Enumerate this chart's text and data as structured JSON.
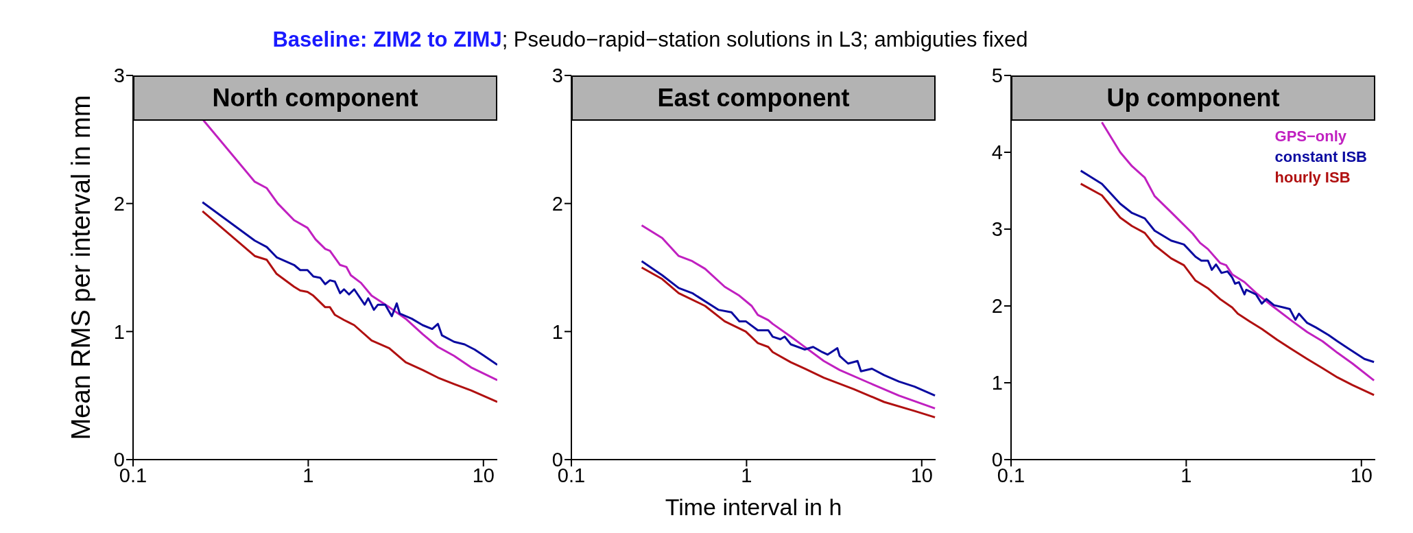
{
  "chart_data": [
    {
      "type": "line",
      "title": "North component",
      "subtitle": "Baseline: ZIM2 to ZIMJ; Pseudo−rapid−station solutions in L3; ambiguties fixed",
      "ylabel": "Mean RMS per interval in mm",
      "log": "x",
      "xlim": [
        0.1,
        12
      ],
      "xticks": [
        0.1,
        1,
        10
      ],
      "ylim": [
        0,
        3
      ],
      "yticks": [
        0,
        1,
        2,
        3
      ],
      "grid": false,
      "legend": false,
      "marker": "none",
      "line_style": "solid",
      "series": [
        {
          "color": "#c020c0",
          "x": [
            0.252,
            0.495,
            0.58,
            0.67,
            0.83,
            0.99,
            1.1,
            1.25,
            1.33,
            1.52,
            1.65,
            1.75,
            2.0,
            2.3,
            2.9,
            3.6,
            4.5,
            5.5,
            6.8,
            8.5,
            12
          ],
          "values": [
            2.65,
            2.17,
            2.12,
            2.0,
            1.87,
            1.81,
            1.72,
            1.645,
            1.63,
            1.52,
            1.505,
            1.44,
            1.38,
            1.28,
            1.19,
            1.1,
            0.98,
            0.88,
            0.81,
            0.72,
            0.62
          ]
        },
        {
          "color": "#0a0aa0",
          "x": [
            0.249,
            0.495,
            0.58,
            0.66,
            0.83,
            0.9,
            0.99,
            1.07,
            1.17,
            1.25,
            1.33,
            1.42,
            1.52,
            1.6,
            1.71,
            1.83,
            2.1,
            2.2,
            2.37,
            2.5,
            2.75,
            3.0,
            3.2,
            3.33,
            3.9,
            4.5,
            5.1,
            5.5,
            5.8,
            6.8,
            7.8,
            8.9,
            10.1,
            12
          ],
          "values": [
            2.01,
            1.71,
            1.66,
            1.58,
            1.52,
            1.48,
            1.48,
            1.43,
            1.42,
            1.37,
            1.4,
            1.39,
            1.3,
            1.33,
            1.29,
            1.33,
            1.21,
            1.26,
            1.17,
            1.21,
            1.21,
            1.12,
            1.22,
            1.14,
            1.1,
            1.05,
            1.02,
            1.06,
            0.97,
            0.92,
            0.9,
            0.86,
            0.81,
            0.74
          ]
        },
        {
          "color": "#b01010",
          "x": [
            0.249,
            0.495,
            0.58,
            0.66,
            0.83,
            0.9,
            0.99,
            1.07,
            1.25,
            1.33,
            1.42,
            1.6,
            1.83,
            2.3,
            2.9,
            3.6,
            4.5,
            5.5,
            6.8,
            8.5,
            12
          ],
          "values": [
            1.94,
            1.59,
            1.56,
            1.45,
            1.35,
            1.32,
            1.31,
            1.28,
            1.19,
            1.19,
            1.13,
            1.09,
            1.05,
            0.93,
            0.87,
            0.76,
            0.7,
            0.64,
            0.59,
            0.54,
            0.45
          ]
        }
      ]
    },
    {
      "type": "line",
      "title": "East component",
      "xlabel": "Time interval in h",
      "log": "x",
      "xlim": [
        0.1,
        12
      ],
      "xticks": [
        0.1,
        1,
        10
      ],
      "ylim": [
        0,
        3
      ],
      "yticks": [
        0,
        1,
        2,
        3
      ],
      "grid": false,
      "legend": false,
      "marker": "none",
      "line_style": "solid",
      "series": [
        {
          "color": "#c020c0",
          "x": [
            0.252,
            0.33,
            0.41,
            0.49,
            0.58,
            0.75,
            0.91,
            1.07,
            1.16,
            1.33,
            1.41,
            1.79,
            2.1,
            2.76,
            3.4,
            5.0,
            7.4,
            11.9
          ],
          "values": [
            1.83,
            1.73,
            1.59,
            1.55,
            1.49,
            1.35,
            1.28,
            1.2,
            1.13,
            1.09,
            1.06,
            0.96,
            0.89,
            0.77,
            0.7,
            0.6,
            0.5,
            0.4
          ]
        },
        {
          "color": "#0a0aa0",
          "x": [
            0.252,
            0.33,
            0.41,
            0.49,
            0.69,
            0.82,
            0.91,
            0.99,
            1.16,
            1.33,
            1.41,
            1.56,
            1.65,
            1.79,
            2.15,
            2.4,
            2.7,
            2.9,
            3.3,
            3.4,
            3.8,
            4.3,
            4.5,
            5.2,
            6.1,
            7.4,
            9.1,
            11.9
          ],
          "values": [
            1.55,
            1.44,
            1.34,
            1.3,
            1.17,
            1.15,
            1.08,
            1.08,
            1.01,
            1.01,
            0.96,
            0.94,
            0.96,
            0.9,
            0.86,
            0.88,
            0.84,
            0.82,
            0.87,
            0.81,
            0.75,
            0.77,
            0.69,
            0.71,
            0.66,
            0.61,
            0.57,
            0.5
          ]
        },
        {
          "color": "#b01010",
          "x": [
            0.252,
            0.33,
            0.41,
            0.58,
            0.75,
            0.99,
            1.16,
            1.33,
            1.41,
            1.79,
            2.15,
            2.76,
            4.1,
            6.1,
            9.1,
            11.9
          ],
          "values": [
            1.5,
            1.41,
            1.3,
            1.2,
            1.08,
            1.0,
            0.91,
            0.88,
            0.84,
            0.76,
            0.71,
            0.64,
            0.55,
            0.45,
            0.38,
            0.33
          ]
        }
      ]
    },
    {
      "type": "line",
      "title": "Up component",
      "log": "x",
      "xlim": [
        0.1,
        12
      ],
      "xticks": [
        0.1,
        1,
        10
      ],
      "ylim": [
        0,
        5
      ],
      "yticks": [
        0,
        1,
        2,
        3,
        4,
        5
      ],
      "grid": false,
      "legend": "top right",
      "marker": "none",
      "line_style": "solid",
      "series": [
        {
          "name": "GPS−only",
          "color": "#c020c0",
          "x": [
            0.33,
            0.42,
            0.49,
            0.58,
            0.66,
            0.82,
            1.09,
            1.2,
            1.33,
            1.56,
            1.69,
            1.83,
            2.15,
            2.5,
            3.1,
            4.04,
            4.9,
            6.0,
            7.3,
            8.9,
            11.8
          ],
          "values": [
            4.39,
            4.0,
            3.82,
            3.67,
            3.43,
            3.22,
            2.94,
            2.82,
            2.74,
            2.56,
            2.53,
            2.41,
            2.31,
            2.17,
            2.0,
            1.8,
            1.66,
            1.54,
            1.39,
            1.25,
            1.03
          ]
        },
        {
          "name": "constant ISB",
          "color": "#0a0aa0",
          "x": [
            0.25,
            0.33,
            0.42,
            0.49,
            0.58,
            0.66,
            0.82,
            0.97,
            1.13,
            1.22,
            1.33,
            1.4,
            1.48,
            1.59,
            1.72,
            1.83,
            1.9,
            2.0,
            2.15,
            2.2,
            2.5,
            2.7,
            2.87,
            3.17,
            3.6,
            3.9,
            4.2,
            4.4,
            4.9,
            5.5,
            6.5,
            7.3,
            8.9,
            10.4,
            11.8
          ],
          "values": [
            3.76,
            3.59,
            3.33,
            3.21,
            3.14,
            2.98,
            2.85,
            2.8,
            2.64,
            2.59,
            2.59,
            2.47,
            2.54,
            2.43,
            2.45,
            2.37,
            2.29,
            2.31,
            2.15,
            2.21,
            2.15,
            2.03,
            2.09,
            2.01,
            1.98,
            1.96,
            1.82,
            1.9,
            1.78,
            1.72,
            1.62,
            1.54,
            1.41,
            1.31,
            1.27
          ]
        },
        {
          "name": "hourly ISB",
          "color": "#b01010",
          "x": [
            0.25,
            0.33,
            0.42,
            0.49,
            0.58,
            0.66,
            0.82,
            0.97,
            1.13,
            1.33,
            1.56,
            1.83,
            1.97,
            2.3,
            2.7,
            3.3,
            4.04,
            4.9,
            6.0,
            7.3,
            8.9,
            11.8
          ],
          "values": [
            3.59,
            3.44,
            3.15,
            3.04,
            2.95,
            2.79,
            2.62,
            2.53,
            2.33,
            2.23,
            2.09,
            1.98,
            1.9,
            1.8,
            1.7,
            1.56,
            1.43,
            1.31,
            1.19,
            1.07,
            0.97,
            0.84
          ]
        }
      ]
    }
  ]
}
